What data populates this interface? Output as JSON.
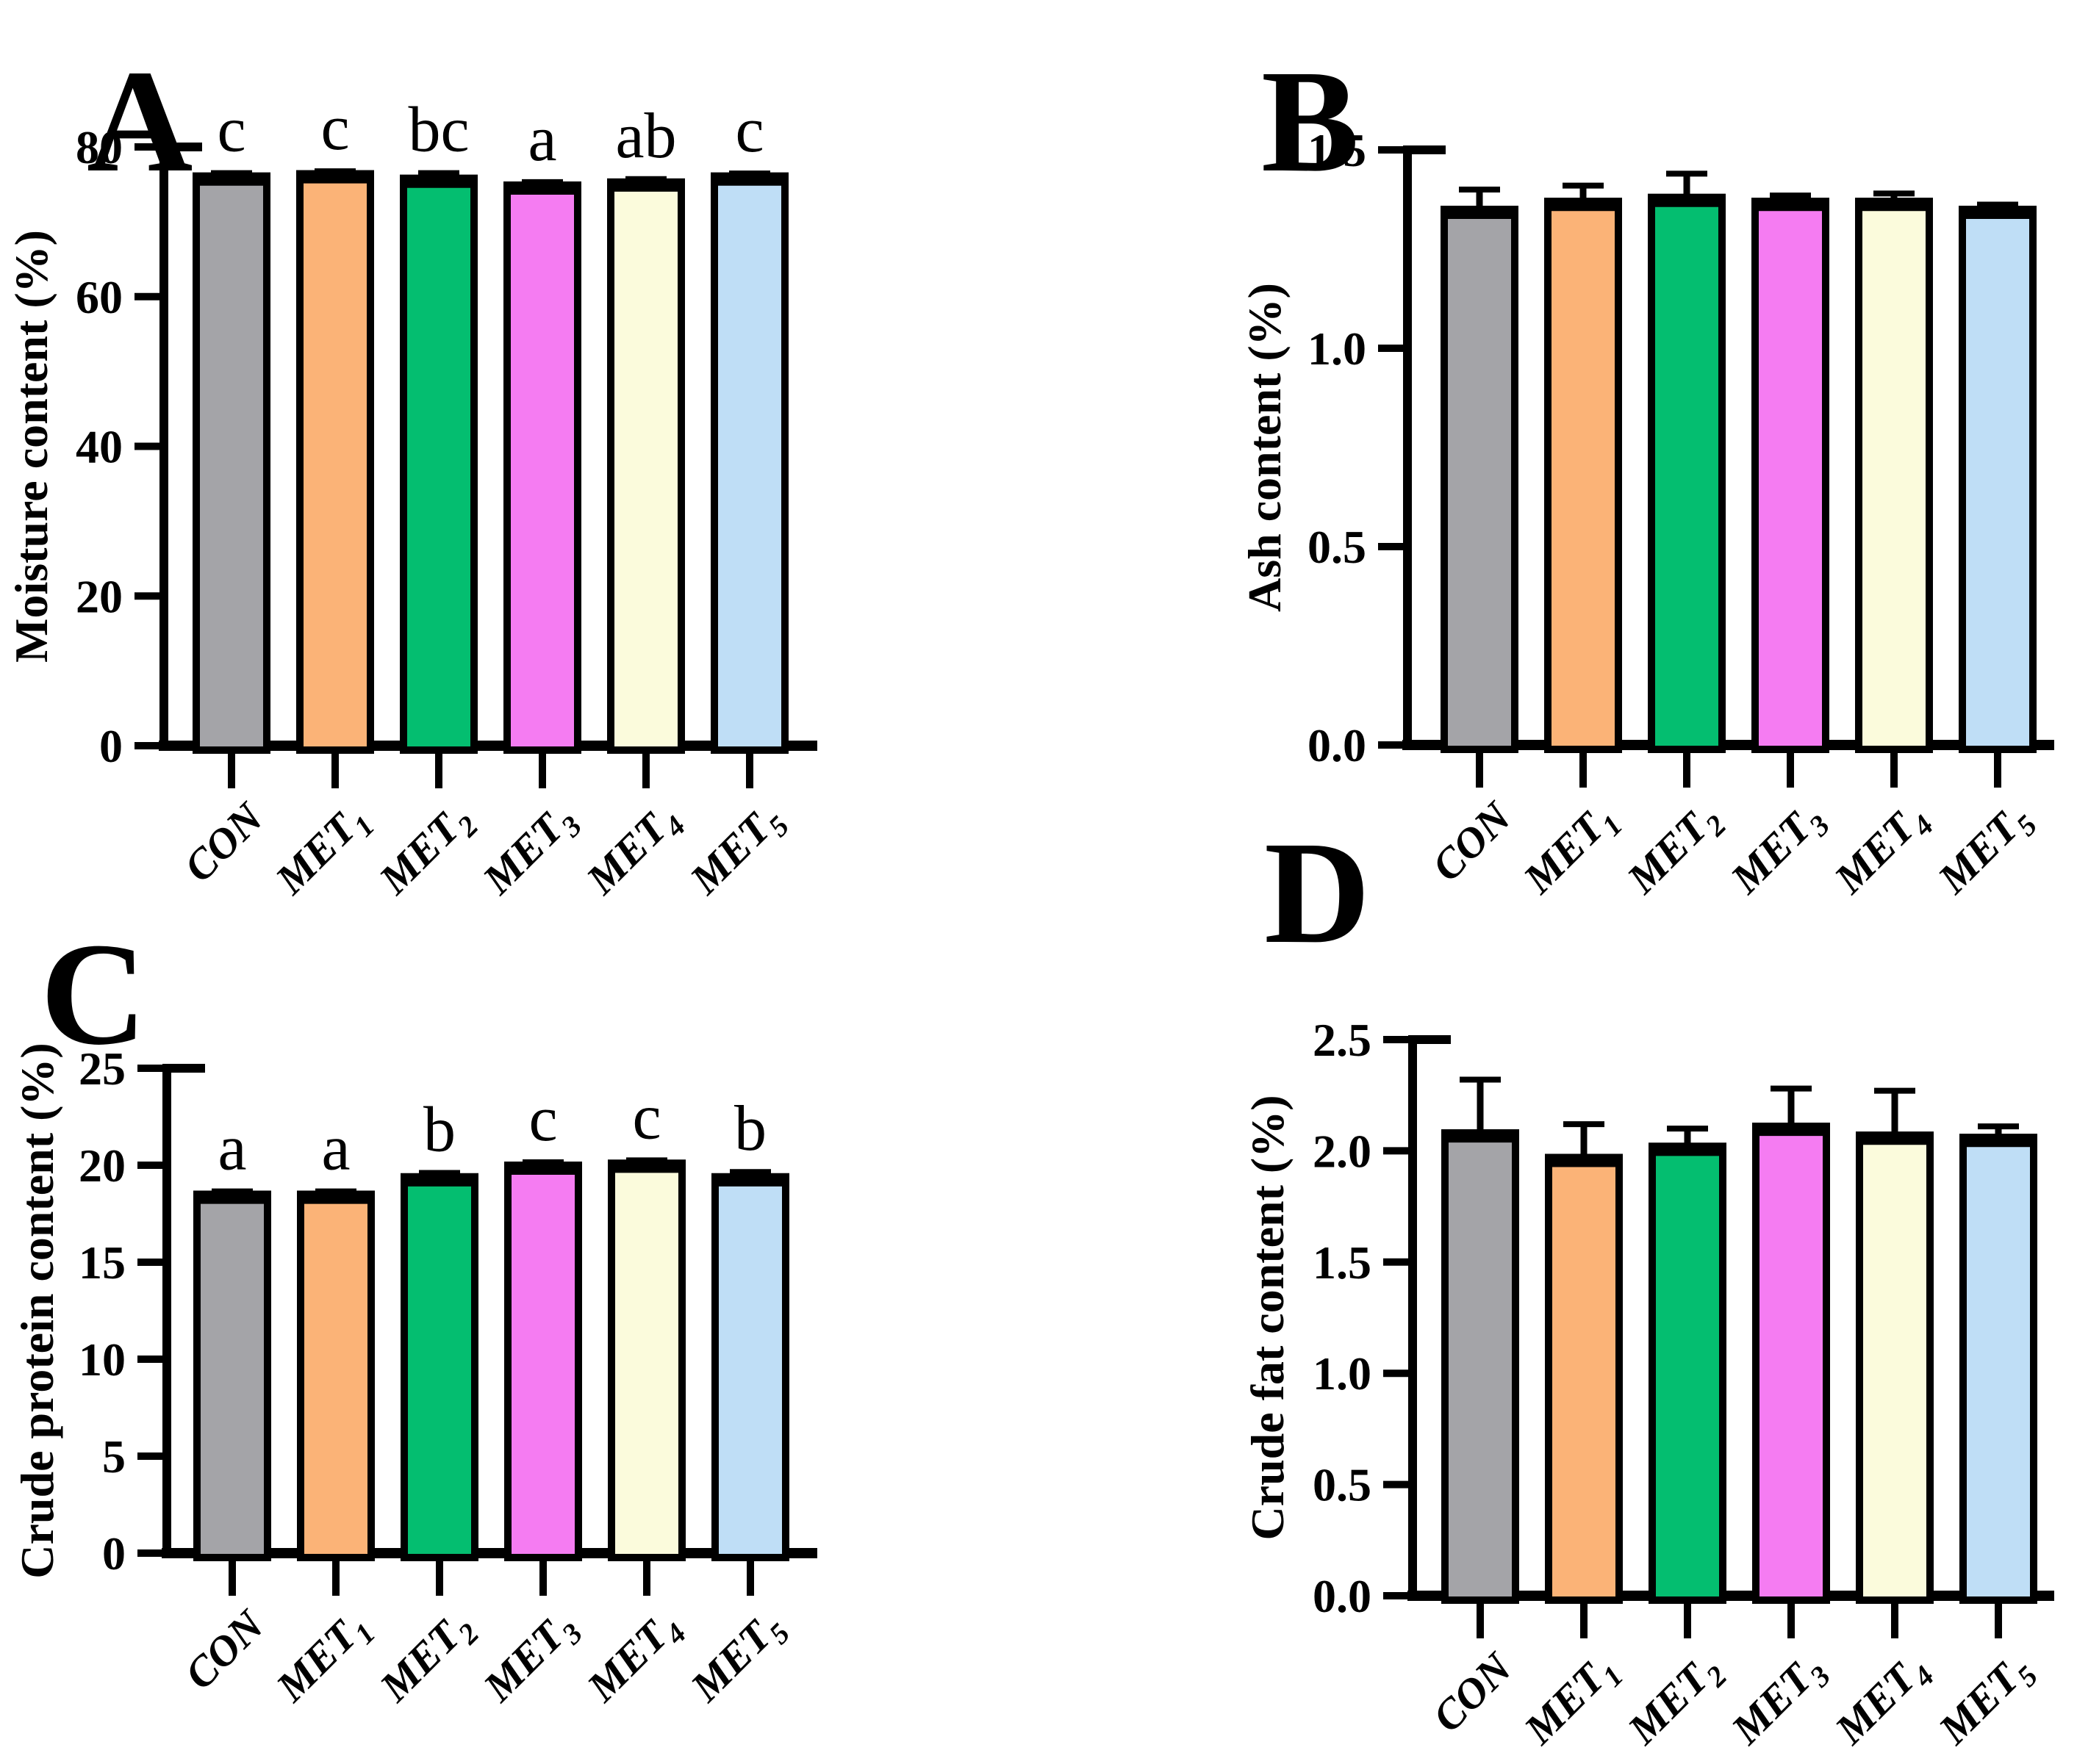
{
  "figure": {
    "description": "Four-panel bar chart figure of proximate composition by dietary group",
    "panel_letters": [
      "A",
      "B",
      "C",
      "D"
    ],
    "background_color": "#ffffff",
    "axis_color": "#000000",
    "bar_stroke_color": "#000000",
    "bar_fill_colors": [
      "#a4a4a8",
      "#fbb377",
      "#04be70",
      "#f57cf2",
      "#fbfbdc",
      "#bfdef6"
    ],
    "group_labels_display": [
      {
        "base": "CON",
        "sub": ""
      },
      {
        "base": "MET",
        "sub": "1"
      },
      {
        "base": "MET",
        "sub": "2"
      },
      {
        "base": "MET",
        "sub": "3"
      },
      {
        "base": "MET",
        "sub": "4"
      },
      {
        "base": "MET",
        "sub": "5"
      }
    ]
  },
  "chart_data": [
    {
      "panel": "A",
      "type": "bar",
      "title": "",
      "ylabel": "Moisture content (%)",
      "xlabel": "",
      "categories": [
        "CON",
        "MET1",
        "MET2",
        "MET3",
        "MET4",
        "MET5"
      ],
      "values": [
        76.1,
        76.4,
        75.8,
        74.9,
        75.3,
        76.1
      ],
      "errors": [
        0.4,
        0.35,
        0.7,
        0.4,
        0.4,
        0.35
      ],
      "sig_letters": [
        "c",
        "c",
        "bc",
        "a",
        "ab",
        "c"
      ],
      "ylim": [
        0,
        80
      ],
      "yticks": [
        0,
        20,
        40,
        60,
        80
      ],
      "grid": false,
      "legend": null
    },
    {
      "panel": "B",
      "type": "bar",
      "title": "",
      "ylabel": "Ash content (%)",
      "xlabel": "",
      "categories": [
        "CON",
        "MET1",
        "MET2",
        "MET3",
        "MET4",
        "MET5"
      ],
      "values": [
        1.35,
        1.37,
        1.38,
        1.37,
        1.37,
        1.35
      ],
      "errors": [
        0.05,
        0.04,
        0.06,
        0.015,
        0.02,
        0.012
      ],
      "sig_letters": null,
      "ylim": [
        0,
        1.5
      ],
      "yticks": [
        0,
        0.5,
        1.0,
        1.5
      ],
      "grid": false,
      "legend": null
    },
    {
      "panel": "C",
      "type": "bar",
      "title": "",
      "ylabel": "Crude protein content (%)",
      "xlabel": "",
      "categories": [
        "CON",
        "MET1",
        "MET2",
        "MET3",
        "MET4",
        "MET5"
      ],
      "values": [
        18.5,
        18.5,
        19.4,
        20.0,
        20.1,
        19.4
      ],
      "errors": [
        0.15,
        0.15,
        0.2,
        0.15,
        0.15,
        0.25
      ],
      "sig_letters": [
        "a",
        "a",
        "b",
        "c",
        "c",
        "b"
      ],
      "ylim": [
        0,
        25
      ],
      "yticks": [
        0,
        5,
        10,
        15,
        20,
        25
      ],
      "grid": false,
      "legend": null
    },
    {
      "panel": "D",
      "type": "bar",
      "title": "",
      "ylabel": "Crude fat content (%)",
      "xlabel": "",
      "categories": [
        "CON",
        "MET1",
        "MET2",
        "MET3",
        "MET4",
        "MET5"
      ],
      "values": [
        2.08,
        1.97,
        2.02,
        2.11,
        2.07,
        2.06
      ],
      "errors": [
        0.24,
        0.15,
        0.08,
        0.17,
        0.2,
        0.05
      ],
      "sig_letters": null,
      "ylim": [
        0,
        2.5
      ],
      "yticks": [
        0,
        0.5,
        1.0,
        1.5,
        2.0,
        2.5
      ],
      "grid": false,
      "legend": null
    }
  ]
}
